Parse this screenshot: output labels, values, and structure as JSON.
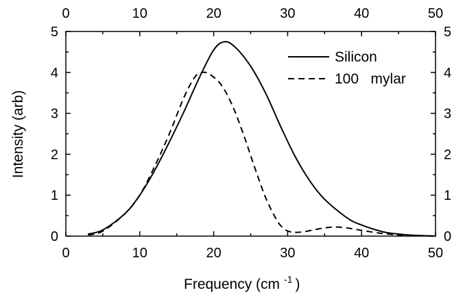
{
  "chart_data": {
    "type": "line",
    "xlabel": "Frequency (cm",
    "xlabel_sup": "-1",
    "xlabel_close": ")",
    "ylabel": "Intensity (arb)",
    "xlim": [
      0,
      50
    ],
    "ylim": [
      0,
      5
    ],
    "x_ticks": [
      0,
      10,
      20,
      30,
      40,
      50
    ],
    "y_ticks": [
      0,
      1,
      2,
      3,
      4,
      5
    ],
    "x_tick_labels": [
      "0",
      "10",
      "20",
      "30",
      "40",
      "50"
    ],
    "y_tick_labels": [
      "0",
      "1",
      "2",
      "3",
      "4",
      "5"
    ],
    "grid": false,
    "legend_position": "top-right",
    "series": [
      {
        "name": "Silicon",
        "style": "solid",
        "color": "#000000",
        "x": [
          3,
          5,
          8,
          10,
          12,
          14,
          16,
          18,
          20,
          21.5,
          23,
          25,
          27,
          29,
          31,
          33,
          35,
          38,
          40,
          43,
          45,
          47,
          50
        ],
        "y": [
          0.05,
          0.15,
          0.55,
          1.0,
          1.6,
          2.3,
          3.05,
          3.85,
          4.55,
          4.75,
          4.6,
          4.15,
          3.5,
          2.7,
          1.95,
          1.35,
          0.9,
          0.45,
          0.27,
          0.1,
          0.05,
          0.02,
          0.0
        ]
      },
      {
        "name": "100   mylar",
        "style": "dashed",
        "color": "#000000",
        "x": [
          3,
          5,
          8,
          10,
          12,
          14,
          16,
          17.5,
          18.5,
          19.5,
          21,
          22.5,
          24,
          25.5,
          27,
          28.5,
          29.5,
          30.5,
          32,
          34,
          36,
          38,
          40,
          43,
          46,
          50
        ],
        "y": [
          0.03,
          0.12,
          0.55,
          1.0,
          1.7,
          2.5,
          3.4,
          3.9,
          4.0,
          3.95,
          3.7,
          3.2,
          2.5,
          1.7,
          0.95,
          0.4,
          0.18,
          0.1,
          0.1,
          0.17,
          0.22,
          0.2,
          0.14,
          0.06,
          0.02,
          0.0
        ]
      }
    ]
  }
}
